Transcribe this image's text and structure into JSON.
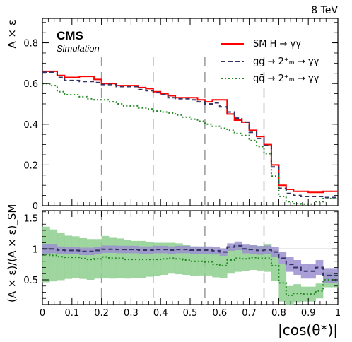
{
  "header": {
    "energy_label": "8 TeV"
  },
  "experiment": {
    "name": "CMS",
    "sublabel": "Simulation"
  },
  "chart_data": [
    {
      "type": "line",
      "panel": "top",
      "ylabel": "A × ε",
      "xlim": [
        0,
        1
      ],
      "ylim": [
        0,
        0.92
      ],
      "yticks": [
        0,
        0.2,
        0.4,
        0.6,
        0.8
      ],
      "ytick_labels": [
        "0",
        "0.2",
        "0.4",
        "0.6",
        "0.8"
      ],
      "category_boundaries": [
        0.2,
        0.375,
        0.55,
        0.75
      ],
      "bin_edges": [
        0,
        0.025,
        0.05,
        0.075,
        0.1,
        0.125,
        0.15,
        0.175,
        0.2,
        0.225,
        0.25,
        0.275,
        0.3,
        0.325,
        0.35,
        0.375,
        0.4,
        0.425,
        0.45,
        0.475,
        0.5,
        0.525,
        0.55,
        0.575,
        0.6,
        0.625,
        0.65,
        0.675,
        0.7,
        0.725,
        0.75,
        0.775,
        0.8,
        0.825,
        0.85,
        0.875,
        0.9,
        0.925,
        0.95,
        0.975,
        1.0
      ],
      "legend_position": "top-right",
      "series": [
        {
          "name": "SM H → γγ",
          "color": "#ff0000",
          "style": "solid",
          "values": [
            0.66,
            0.66,
            0.64,
            0.63,
            0.63,
            0.635,
            0.635,
            0.62,
            0.6,
            0.6,
            0.59,
            0.59,
            0.59,
            0.58,
            0.575,
            0.56,
            0.55,
            0.54,
            0.53,
            0.53,
            0.53,
            0.52,
            0.51,
            0.52,
            0.52,
            0.45,
            0.42,
            0.41,
            0.37,
            0.34,
            0.3,
            0.2,
            0.1,
            0.08,
            0.07,
            0.07,
            0.065,
            0.065,
            0.07,
            0.07
          ]
        },
        {
          "name": "gg → 2⁺ₘ → γγ",
          "color": "#333366",
          "style": "dashed",
          "values": [
            0.655,
            0.655,
            0.63,
            0.615,
            0.615,
            0.61,
            0.61,
            0.605,
            0.595,
            0.595,
            0.585,
            0.585,
            0.585,
            0.57,
            0.565,
            0.555,
            0.545,
            0.53,
            0.525,
            0.525,
            0.52,
            0.51,
            0.5,
            0.505,
            0.485,
            0.46,
            0.43,
            0.41,
            0.36,
            0.33,
            0.295,
            0.19,
            0.085,
            0.06,
            0.05,
            0.045,
            0.045,
            0.045,
            0.04,
            0.04
          ]
        },
        {
          "name": "qq̄ → 2⁺ₘ → γγ",
          "color": "#228822",
          "style": "dotted",
          "values": [
            0.6,
            0.59,
            0.56,
            0.545,
            0.545,
            0.535,
            0.525,
            0.52,
            0.52,
            0.51,
            0.5,
            0.49,
            0.49,
            0.48,
            0.475,
            0.465,
            0.46,
            0.455,
            0.445,
            0.435,
            0.425,
            0.415,
            0.4,
            0.39,
            0.38,
            0.37,
            0.355,
            0.345,
            0.32,
            0.29,
            0.255,
            0.145,
            0.045,
            0.02,
            0.01,
            0.008,
            0.008,
            0.02,
            0.035,
            0.035
          ]
        }
      ]
    },
    {
      "type": "line",
      "panel": "bottom",
      "xlabel": "|cos(θ*)|",
      "ylabel": "(A × ε)/(A × ε)_SM",
      "xlim": [
        0,
        1
      ],
      "ylim": [
        0.1,
        1.62
      ],
      "xticks": [
        0,
        0.1,
        0.2,
        0.3,
        0.4,
        0.5,
        0.6,
        0.7,
        0.8,
        0.9,
        1
      ],
      "xtick_labels": [
        "0",
        "0.1",
        "0.2",
        "0.3",
        "0.4",
        "0.5",
        "0.6",
        "0.7",
        "0.8",
        "0.9",
        "1"
      ],
      "yticks": [
        0.5,
        1,
        1.5
      ],
      "ytick_labels": [
        "0.5",
        "1",
        "1.5"
      ],
      "reference_line": 1,
      "category_boundaries": [
        0.2,
        0.375,
        0.55,
        0.75
      ],
      "series": [
        {
          "name": "gg → 2⁺ₘ → γγ",
          "color": "#333366",
          "style": "dashed",
          "band_color": "#9b8fd0",
          "values": [
            1.0,
            1.0,
            0.98,
            0.975,
            0.975,
            0.96,
            0.96,
            0.975,
            0.995,
            0.995,
            0.99,
            0.99,
            0.99,
            0.98,
            0.98,
            0.99,
            0.99,
            0.98,
            0.99,
            0.99,
            0.98,
            0.98,
            0.98,
            0.97,
            0.95,
            1.03,
            1.05,
            1.0,
            0.99,
            0.975,
            0.985,
            0.95,
            0.85,
            0.75,
            0.7,
            0.64,
            0.64,
            0.7,
            0.57,
            0.57
          ],
          "errors": [
            0.08,
            0.07,
            0.06,
            0.06,
            0.06,
            0.06,
            0.06,
            0.06,
            0.06,
            0.06,
            0.06,
            0.06,
            0.06,
            0.06,
            0.06,
            0.06,
            0.06,
            0.06,
            0.06,
            0.06,
            0.06,
            0.06,
            0.06,
            0.06,
            0.06,
            0.06,
            0.07,
            0.07,
            0.07,
            0.07,
            0.07,
            0.08,
            0.1,
            0.12,
            0.12,
            0.12,
            0.12,
            0.12,
            0.12,
            0.12
          ]
        },
        {
          "name": "qq̄ → 2⁺ₘ → γγ",
          "color": "#228822",
          "style": "dotted",
          "band_color": "#8ecf8e",
          "values": [
            0.91,
            0.895,
            0.875,
            0.865,
            0.865,
            0.845,
            0.83,
            0.84,
            0.87,
            0.85,
            0.85,
            0.83,
            0.83,
            0.83,
            0.83,
            0.83,
            0.84,
            0.85,
            0.84,
            0.82,
            0.8,
            0.8,
            0.79,
            0.75,
            0.73,
            0.82,
            0.85,
            0.84,
            0.86,
            0.85,
            0.85,
            0.73,
            0.45,
            0.25,
            0.28,
            0.27,
            0.27,
            0.32,
            0.5,
            0.5
          ],
          "errors": [
            0.45,
            0.42,
            0.38,
            0.35,
            0.34,
            0.33,
            0.33,
            0.32,
            0.34,
            0.33,
            0.32,
            0.31,
            0.3,
            0.3,
            0.28,
            0.27,
            0.26,
            0.25,
            0.25,
            0.24,
            0.24,
            0.23,
            0.22,
            0.21,
            0.2,
            0.22,
            0.22,
            0.2,
            0.2,
            0.2,
            0.22,
            0.25,
            0.3,
            0.15,
            0.15,
            0.12,
            0.12,
            0.12,
            0.12,
            0.12
          ]
        }
      ]
    }
  ]
}
